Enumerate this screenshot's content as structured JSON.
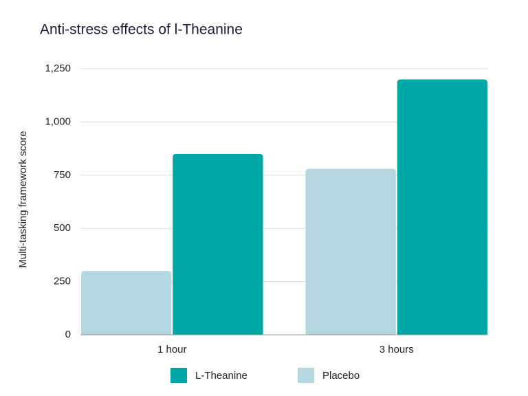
{
  "chart_data": {
    "type": "bar",
    "title": "Anti-stress effects of l-Theanine",
    "y_label": "Multi-tasking framework score",
    "categories": [
      "1 hour",
      "3 hours"
    ],
    "series": [
      {
        "name": "L-Theanine",
        "color": "#00a7a7",
        "values": [
          850,
          1200
        ]
      },
      {
        "name": "Placebo",
        "color": "#b3d6df",
        "values": [
          300,
          780
        ]
      }
    ],
    "ylim": [
      0,
      1250
    ],
    "yticks": [
      0,
      250,
      500,
      750,
      {
        "value": 1000,
        "label": "1,000"
      },
      {
        "value": 1250,
        "label": "1,250"
      }
    ],
    "grid": true,
    "legend": "bottom"
  }
}
